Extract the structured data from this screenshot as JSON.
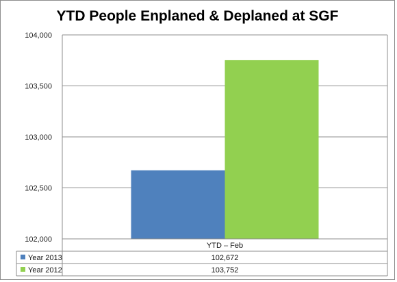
{
  "chart_data": {
    "type": "bar",
    "title": "YTD People Enplaned & Deplaned at SGF",
    "categories": [
      "YTD – Feb"
    ],
    "series": [
      {
        "name": "Year 2013",
        "values": [
          102672
        ],
        "color": "#4F81BD"
      },
      {
        "name": "Year 2012",
        "values": [
          103752
        ],
        "color": "#92D050"
      }
    ],
    "ylim": [
      102000,
      104000
    ],
    "yticks": [
      102000,
      102500,
      103000,
      103500,
      104000
    ],
    "ytick_labels": [
      "102,000",
      "102,500",
      "103,000",
      "103,500",
      "104,000"
    ],
    "table_values": [
      [
        "102,672"
      ],
      [
        "103,752"
      ]
    ],
    "grid": true,
    "legend": "data-table"
  }
}
